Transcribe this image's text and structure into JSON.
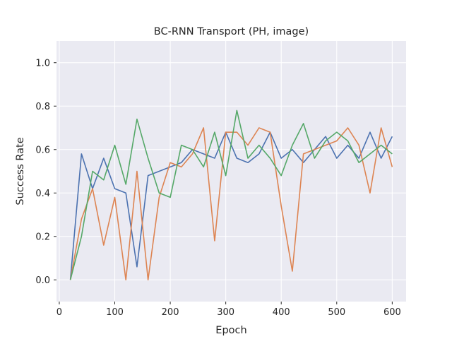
{
  "chart_data": {
    "type": "line",
    "title": "BC-RNN Transport (PH, image)",
    "xlabel": "Epoch",
    "ylabel": "Success Rate",
    "xlim": [
      -5,
      625
    ],
    "ylim": [
      -0.1,
      1.1
    ],
    "xticks": [
      0,
      100,
      200,
      300,
      400,
      500,
      600
    ],
    "yticks": [
      0.0,
      0.2,
      0.4,
      0.6,
      0.8,
      1.0
    ],
    "xtick_labels": [
      "0",
      "100",
      "200",
      "300",
      "400",
      "500",
      "600"
    ],
    "ytick_labels": [
      "0.0",
      "0.2",
      "0.4",
      "0.6",
      "0.8",
      "1.0"
    ],
    "grid": true,
    "background": "#eaeaf2",
    "x": [
      20,
      40,
      60,
      80,
      100,
      120,
      140,
      160,
      180,
      200,
      220,
      240,
      260,
      280,
      300,
      320,
      340,
      360,
      380,
      400,
      420,
      440,
      460,
      480,
      500,
      520,
      540,
      560,
      580,
      600
    ],
    "series": [
      {
        "color": "#4c72b0",
        "values": [
          0.0,
          0.58,
          0.42,
          0.56,
          0.42,
          0.4,
          0.06,
          0.48,
          0.5,
          0.52,
          0.54,
          0.6,
          0.58,
          0.56,
          0.68,
          0.56,
          0.54,
          0.58,
          0.68,
          0.56,
          0.6,
          0.54,
          0.6,
          0.66,
          0.56,
          0.62,
          0.56,
          0.68,
          0.56,
          0.66
        ]
      },
      {
        "color": "#dd8452",
        "values": [
          0.0,
          0.28,
          0.42,
          0.16,
          0.38,
          0.0,
          0.5,
          0.0,
          0.38,
          0.54,
          0.52,
          0.58,
          0.7,
          0.18,
          0.68,
          0.68,
          0.62,
          0.7,
          0.68,
          0.34,
          0.04,
          0.58,
          0.6,
          0.62,
          0.64,
          0.7,
          0.62,
          0.4,
          0.7,
          0.52
        ]
      },
      {
        "color": "#55a868",
        "values": [
          0.0,
          0.2,
          0.5,
          0.46,
          0.62,
          0.44,
          0.74,
          0.56,
          0.4,
          0.38,
          0.62,
          0.6,
          0.52,
          0.68,
          0.48,
          0.78,
          0.56,
          0.62,
          0.56,
          0.48,
          0.62,
          0.72,
          0.56,
          0.64,
          0.68,
          0.64,
          0.54,
          0.58,
          0.62,
          0.58
        ]
      }
    ]
  }
}
